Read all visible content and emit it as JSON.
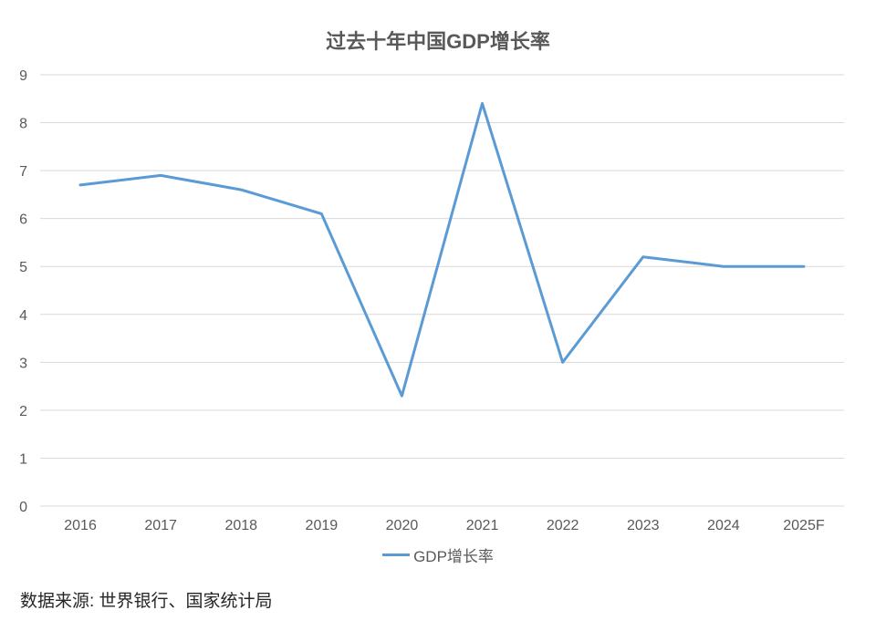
{
  "title": "过去十年中国GDP增长率",
  "source_note": "数据来源: 世界银行、国家统计局",
  "legend": {
    "label": "GDP增长率",
    "color": "#5B9BD5"
  },
  "chart_data": {
    "type": "line",
    "title": "过去十年中国GDP增长率",
    "xlabel": "",
    "ylabel": "",
    "categories": [
      "2016",
      "2017",
      "2018",
      "2019",
      "2020",
      "2021",
      "2022",
      "2023",
      "2024",
      "2025F"
    ],
    "series": [
      {
        "name": "GDP增长率",
        "color": "#5B9BD5",
        "values": [
          6.7,
          6.9,
          6.6,
          6.1,
          2.3,
          8.4,
          3.0,
          5.2,
          5.0,
          5.0
        ]
      }
    ],
    "ylim": [
      0,
      9
    ],
    "yticks": [
      0,
      1,
      2,
      3,
      4,
      5,
      6,
      7,
      8,
      9
    ],
    "grid": true,
    "legend_position": "bottom"
  }
}
